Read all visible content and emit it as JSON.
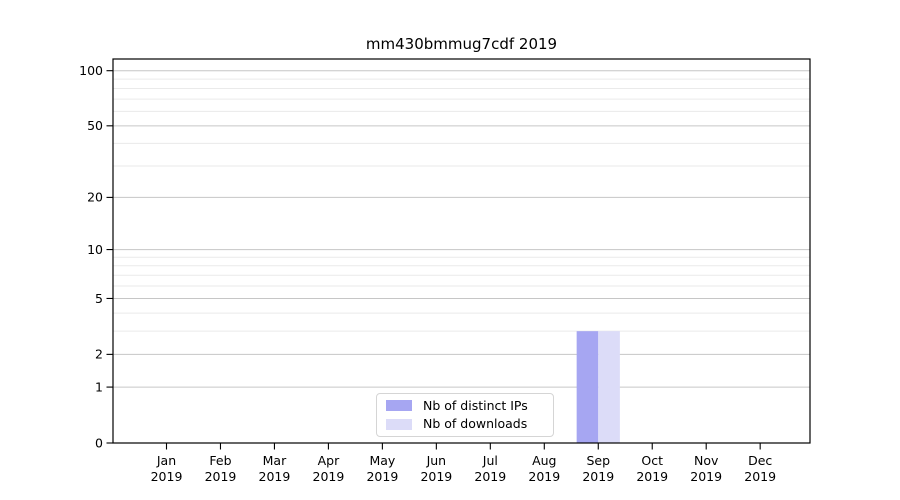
{
  "chart_data": {
    "type": "bar",
    "title": "mm430bmmug7cdf 2019",
    "categories": [
      "Jan 2019",
      "Feb 2019",
      "Mar 2019",
      "Apr 2019",
      "May 2019",
      "Jun 2019",
      "Jul 2019",
      "Aug 2019",
      "Sep 2019",
      "Oct 2019",
      "Nov 2019",
      "Dec 2019"
    ],
    "series": [
      {
        "name": "Nb of distinct IPs",
        "color": "#a6a6f2",
        "values": [
          0,
          0,
          0,
          0,
          0,
          0,
          0,
          0,
          3,
          0,
          0,
          0
        ]
      },
      {
        "name": "Nb of downloads",
        "color": "#dcdcf8",
        "values": [
          0,
          0,
          0,
          0,
          0,
          0,
          0,
          0,
          3,
          0,
          0,
          0
        ]
      }
    ],
    "xlabel": "",
    "ylabel": "",
    "yscale": "log1p",
    "ylim": [
      0,
      116
    ],
    "y_major_ticks": [
      0,
      1,
      2,
      5,
      10,
      20,
      50,
      100
    ],
    "y_minor_ticks": [
      3,
      4,
      6,
      7,
      8,
      9,
      30,
      40,
      60,
      70,
      80,
      90
    ],
    "grid": "horizontal major and minor gridlines",
    "legend_position": "lower center inside plot"
  }
}
